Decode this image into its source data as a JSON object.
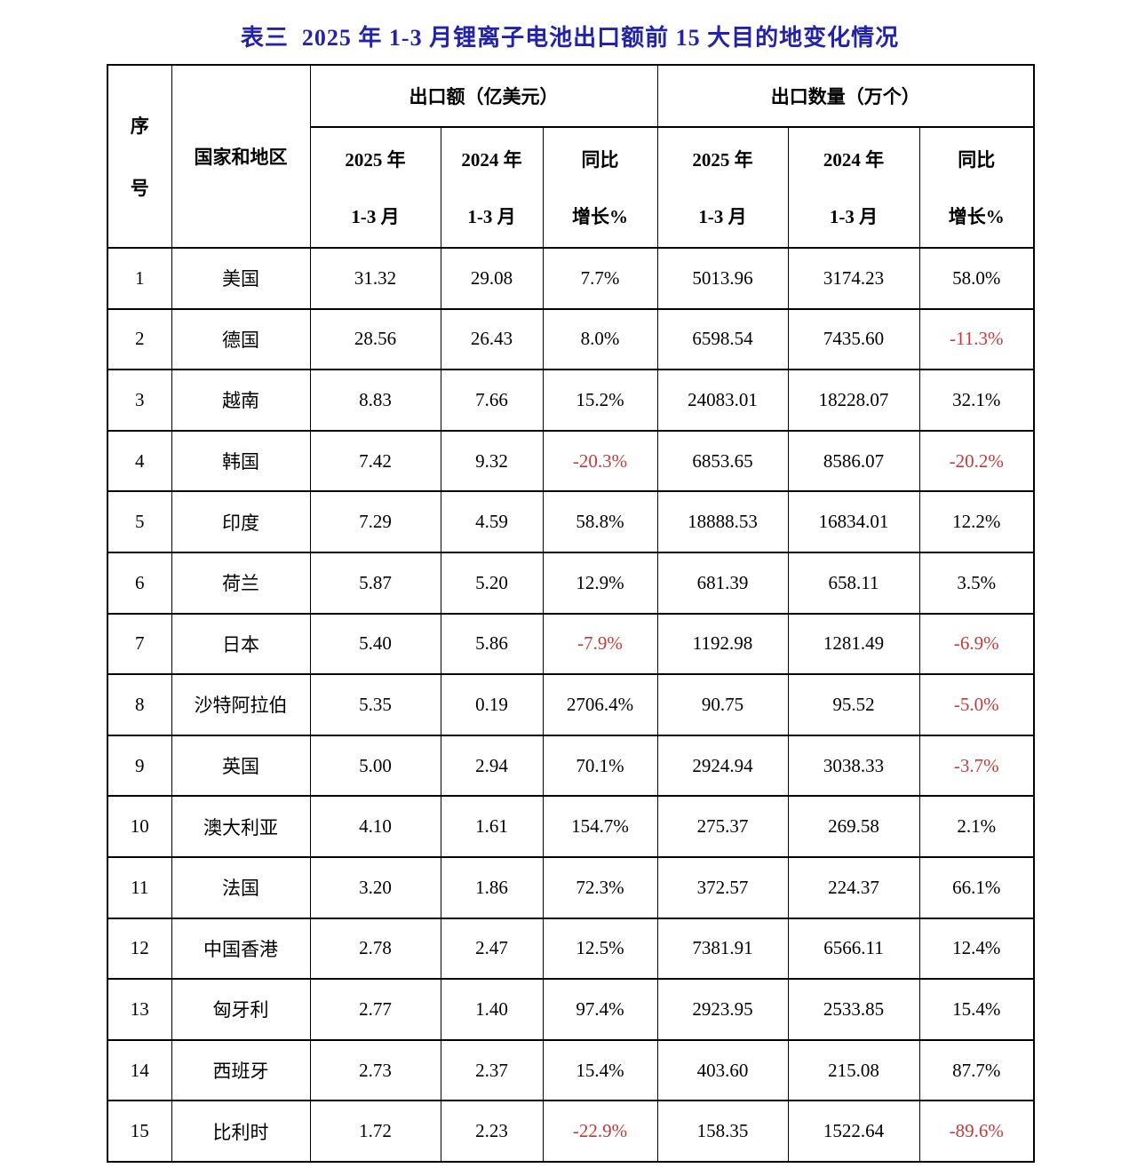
{
  "page": {
    "title": "表三  2025 年 1-3 月锂离子电池出口额前 15 大目的地变化情况"
  },
  "colors": {
    "title_blue": "#2222ab",
    "negative_red": "#c23b3b",
    "border_black": "#000000"
  },
  "table": {
    "header": {
      "seq_line1": "序",
      "seq_line2": "号",
      "country": "国家和地区",
      "group_value": "出口额（亿美元）",
      "group_qty": "出口数量（万个）",
      "sub": [
        {
          "line1": "2025 年",
          "line2": "1-3 月"
        },
        {
          "line1": "2024 年",
          "line2": "1-3 月"
        },
        {
          "line1": "同比",
          "line2": "增长%"
        },
        {
          "line1": "2025 年",
          "line2": "1-3 月"
        },
        {
          "line1": "2024 年",
          "line2": "1-3 月"
        },
        {
          "line1": "同比",
          "line2": "增长%"
        }
      ]
    },
    "rows": [
      [
        "1",
        "美国",
        "31.32",
        "29.08",
        "7.7%",
        "5013.96",
        "3174.23",
        "58.0%"
      ],
      [
        "2",
        "德国",
        "28.56",
        "26.43",
        "8.0%",
        "6598.54",
        "7435.60",
        "-11.3%"
      ],
      [
        "3",
        "越南",
        "8.83",
        "7.66",
        "15.2%",
        "24083.01",
        "18228.07",
        "32.1%"
      ],
      [
        "4",
        "韩国",
        "7.42",
        "9.32",
        "-20.3%",
        "6853.65",
        "8586.07",
        "-20.2%"
      ],
      [
        "5",
        "印度",
        "7.29",
        "4.59",
        "58.8%",
        "18888.53",
        "16834.01",
        "12.2%"
      ],
      [
        "6",
        "荷兰",
        "5.87",
        "5.20",
        "12.9%",
        "681.39",
        "658.11",
        "3.5%"
      ],
      [
        "7",
        "日本",
        "5.40",
        "5.86",
        "-7.9%",
        "1192.98",
        "1281.49",
        "-6.9%"
      ],
      [
        "8",
        "沙特阿拉伯",
        "5.35",
        "0.19",
        "2706.4%",
        "90.75",
        "95.52",
        "-5.0%"
      ],
      [
        "9",
        "英国",
        "5.00",
        "2.94",
        "70.1%",
        "2924.94",
        "3038.33",
        "-3.7%"
      ],
      [
        "10",
        "澳大利亚",
        "4.10",
        "1.61",
        "154.7%",
        "275.37",
        "269.58",
        "2.1%"
      ],
      [
        "11",
        "法国",
        "3.20",
        "1.86",
        "72.3%",
        "372.57",
        "224.37",
        "66.1%"
      ],
      [
        "12",
        "中国香港",
        "2.78",
        "2.47",
        "12.5%",
        "7381.91",
        "6566.11",
        "12.4%"
      ],
      [
        "13",
        "匈牙利",
        "2.77",
        "1.40",
        "97.4%",
        "2923.95",
        "2533.85",
        "15.4%"
      ],
      [
        "14",
        "西班牙",
        "2.73",
        "2.37",
        "15.4%",
        "403.60",
        "215.08",
        "87.7%"
      ],
      [
        "15",
        "比利时",
        "1.72",
        "2.23",
        "-22.9%",
        "158.35",
        "1522.64",
        "-89.6%"
      ]
    ],
    "cell_names": [
      "seq-cell",
      "country-cell",
      "export-value-2025-cell",
      "export-value-2024-cell",
      "export-value-yoy-cell",
      "export-qty-2025-cell",
      "export-qty-2024-cell",
      "export-qty-yoy-cell"
    ]
  }
}
